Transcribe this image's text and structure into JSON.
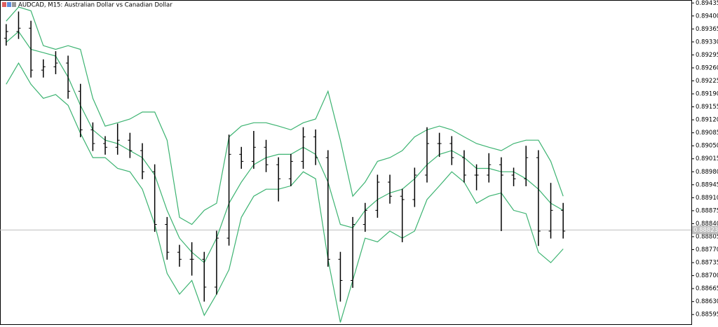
{
  "chart_data": {
    "type": "ohlc",
    "title": "AUDCAD, M15:  Australian Dollar vs Canadian Dollar",
    "bar_color": "#000000",
    "open": [
      0.8934,
      0.89358,
      0.89367,
      0.89254,
      0.89263,
      0.89273,
      0.89197,
      0.89093,
      0.89056,
      0.89046,
      0.89065,
      0.89037,
      0.8898,
      0.88838,
      0.88763,
      0.88744,
      0.88744,
      0.88669,
      0.88801,
      0.89027,
      0.89008,
      0.89046,
      0.88999,
      0.88961,
      0.89008,
      0.89074,
      0.89018,
      0.88744,
      0.88687,
      0.88838,
      0.88876,
      0.88952,
      0.88914,
      0.88905,
      0.88971,
      0.89056,
      0.89056,
      0.89018,
      0.88971,
      0.88971,
      0.88999,
      0.88971,
      0.88961,
      0.89018,
      0.8882,
      0.88876
    ],
    "high": [
      0.89378,
      0.89412,
      0.89387,
      0.89283,
      0.89305,
      0.89293,
      0.89217,
      0.89113,
      0.89076,
      0.8911,
      0.89085,
      0.89057,
      0.89,
      0.88858,
      0.88783,
      0.8879,
      0.88764,
      0.88821,
      0.8908,
      0.89047,
      0.8909,
      0.89066,
      0.89019,
      0.89028,
      0.891,
      0.89094,
      0.89038,
      0.88764,
      0.88858,
      0.88896,
      0.88972,
      0.88972,
      0.88934,
      0.88991,
      0.891,
      0.89085,
      0.89076,
      0.89038,
      0.89,
      0.8903,
      0.89019,
      0.88991,
      0.8905,
      0.89038,
      0.8895,
      0.88896
    ],
    "low": [
      0.8932,
      0.89338,
      0.89234,
      0.89234,
      0.89243,
      0.89177,
      0.89073,
      0.89036,
      0.89026,
      0.89026,
      0.89017,
      0.8896,
      0.88818,
      0.88743,
      0.88724,
      0.887,
      0.8863,
      0.88649,
      0.88781,
      0.88988,
      0.88988,
      0.88979,
      0.889,
      0.88941,
      0.88988,
      0.88998,
      0.88724,
      0.8863,
      0.88667,
      0.88818,
      0.88856,
      0.88894,
      0.8879,
      0.88885,
      0.88951,
      0.8902,
      0.88998,
      0.88951,
      0.8893,
      0.88951,
      0.8882,
      0.88941,
      0.88941,
      0.8878,
      0.888,
      0.888
    ],
    "close": [
      0.89358,
      0.89367,
      0.89254,
      0.89263,
      0.89273,
      0.89197,
      0.89093,
      0.89056,
      0.89046,
      0.89065,
      0.89037,
      0.8898,
      0.88838,
      0.88763,
      0.88744,
      0.88744,
      0.88669,
      0.88801,
      0.89027,
      0.89008,
      0.89046,
      0.88999,
      0.88961,
      0.89008,
      0.89074,
      0.89018,
      0.88744,
      0.88687,
      0.88838,
      0.88876,
      0.88952,
      0.88914,
      0.88905,
      0.88971,
      0.89056,
      0.89056,
      0.89018,
      0.88971,
      0.88971,
      0.88999,
      0.88971,
      0.88961,
      0.89018,
      0.8882,
      0.88876,
      0.8882
    ],
    "bands": {
      "color": "#3cb371",
      "upper": [
        0.89386,
        0.89424,
        0.89414,
        0.8932,
        0.8931,
        0.8932,
        0.8931,
        0.89178,
        0.89103,
        0.89112,
        0.89122,
        0.89141,
        0.89141,
        0.89065,
        0.88857,
        0.88838,
        0.88876,
        0.88895,
        0.89074,
        0.89103,
        0.89112,
        0.89112,
        0.89103,
        0.89093,
        0.89112,
        0.89122,
        0.89197,
        0.89065,
        0.88914,
        0.88952,
        0.89008,
        0.89018,
        0.89037,
        0.89074,
        0.89093,
        0.89103,
        0.89093,
        0.89074,
        0.89056,
        0.89046,
        0.89037,
        0.89056,
        0.89065,
        0.89065,
        0.89008,
        0.88914
      ],
      "middle": [
        0.89329,
        0.89358,
        0.8931,
        0.89301,
        0.89292,
        0.89235,
        0.89159,
        0.89093,
        0.89065,
        0.89056,
        0.89037,
        0.89018,
        0.88971,
        0.88876,
        0.88801,
        0.88763,
        0.88735,
        0.88801,
        0.88895,
        0.88952,
        0.88999,
        0.89018,
        0.89027,
        0.89027,
        0.89046,
        0.89027,
        0.88952,
        0.88838,
        0.88829,
        0.88876,
        0.88905,
        0.88923,
        0.88933,
        0.88961,
        0.88999,
        0.89027,
        0.89037,
        0.89018,
        0.88989,
        0.88989,
        0.8898,
        0.8898,
        0.88961,
        0.88933,
        0.88895,
        0.88876
      ],
      "lower": [
        0.89216,
        0.89273,
        0.89216,
        0.89178,
        0.89188,
        0.89159,
        0.89084,
        0.89018,
        0.89018,
        0.88989,
        0.8898,
        0.88933,
        0.88838,
        0.88706,
        0.8865,
        0.88687,
        0.88593,
        0.8865,
        0.88716,
        0.88857,
        0.88914,
        0.88933,
        0.88933,
        0.88942,
        0.8898,
        0.88961,
        0.88744,
        0.88574,
        0.88687,
        0.88801,
        0.88791,
        0.8882,
        0.88801,
        0.8882,
        0.88905,
        0.88942,
        0.8898,
        0.88952,
        0.88895,
        0.88914,
        0.88923,
        0.88876,
        0.88867,
        0.88763,
        0.88735,
        0.88772
      ]
    },
    "current_price": 0.88823,
    "current_price_color": "#c0c0c0",
    "ylim": [
      0.88569,
      0.89443
    ],
    "yticks": [
      0.89435,
      {
        "value": 0.894,
        "label": "0.89400"
      },
      0.89365,
      {
        "value": 0.8933,
        "label": "0.89330"
      },
      0.89295,
      {
        "value": 0.8926,
        "label": "0.89260"
      },
      0.89225,
      {
        "value": 0.8919,
        "label": "0.89190"
      },
      0.89155,
      {
        "value": 0.8912,
        "label": "0.89120"
      },
      0.89085,
      {
        "value": 0.8905,
        "label": "0.89050"
      },
      0.89015,
      {
        "value": 0.8898,
        "label": "0.88980"
      },
      0.88945,
      {
        "value": 0.8891,
        "label": "0.88910"
      },
      0.88875,
      {
        "value": 0.8884,
        "label": "0.88840"
      },
      0.88805,
      {
        "value": 0.8877,
        "label": "0.88770"
      },
      0.88735,
      {
        "value": 0.887,
        "label": "0.88700"
      },
      0.88665,
      {
        "value": 0.8863,
        "label": "0.88630"
      },
      0.88595
    ]
  }
}
